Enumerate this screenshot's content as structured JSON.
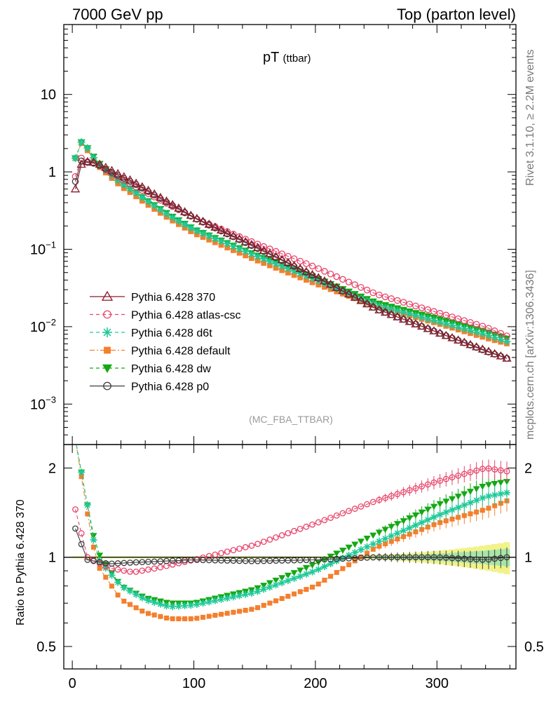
{
  "header": {
    "left": "7000 GeV pp",
    "right": "Top (parton level)"
  },
  "side_labels": {
    "rivet": "Rivet 3.1.10, ≥ 2.2M events",
    "mcplots": "mcplots.cern.ch [arXiv:1306.3436]"
  },
  "chart_data": [
    {
      "type": "scatter",
      "title": "pT",
      "title_sub": "(ttbar)",
      "watermark": "(MC_FBA_TTBAR)",
      "y_scale": "log",
      "ylim": [
        0.0003,
        80
      ],
      "xlim": [
        -7,
        365
      ],
      "y_tick_labels": [
        {
          "v": 10,
          "base": "10",
          "exp": ""
        },
        {
          "v": 1,
          "base": "1",
          "exp": ""
        },
        {
          "v": 0.1,
          "base": "10",
          "exp": "−1"
        },
        {
          "v": 0.01,
          "base": "10",
          "exp": "−2"
        },
        {
          "v": 0.001,
          "base": "10",
          "exp": "−3"
        }
      ],
      "legend_placement": "lower-left",
      "series": [
        {
          "name": "Pythia 6.428 370",
          "color": "#8b1a2b",
          "marker": "triangle-open",
          "line": "solid",
          "k": 0.7,
          "s": 0,
          "b": 0
        },
        {
          "name": "Pythia 6.428 atlas-csc",
          "color": "#e8446a",
          "marker": "circle-open",
          "line": "dashed",
          "k": 1.15,
          "s": 0.42,
          "b": 0.055
        },
        {
          "name": "Pythia 6.428 d6t",
          "color": "#20c997",
          "marker": "star",
          "line": "dashed",
          "k": 1.2,
          "s": 0.66,
          "b": 0.035
        },
        {
          "name": "Pythia 6.428 default",
          "color": "#f47f2c",
          "marker": "square",
          "line": "dashdot",
          "k": 1.3,
          "s": 0.57,
          "b": 0.032
        },
        {
          "name": "Pythia 6.428 dw",
          "color": "#14a814",
          "marker": "triangle-down",
          "line": "dashed",
          "k": 1.25,
          "s": 0.69,
          "b": 0.037
        },
        {
          "name": "Pythia 6.428 p0",
          "color": "#3d3d3d",
          "marker": "circle-open",
          "line": "solid",
          "k": 1.0,
          "s": 0.96,
          "b": 0.0
        }
      ],
      "ref_series_points": [
        [
          2.5,
          0.6
        ],
        [
          7.5,
          1.25
        ],
        [
          12.5,
          1.35
        ],
        [
          17.5,
          1.33
        ],
        [
          22.5,
          1.25
        ],
        [
          50,
          0.75
        ],
        [
          100,
          0.26
        ],
        [
          150,
          0.11
        ],
        [
          200,
          0.045
        ],
        [
          250,
          0.017
        ],
        [
          300,
          0.0085
        ],
        [
          357.5,
          0.0039
        ]
      ]
    },
    {
      "type": "scatter",
      "ylabel": "Ratio to Pythia 6.428 370",
      "y_scale": "log",
      "ylim": [
        0.42,
        2.4
      ],
      "xlim": [
        -7,
        365
      ],
      "y_ticks": [
        2,
        1,
        0.5
      ],
      "x_ticks": [
        0,
        100,
        200,
        300
      ],
      "ratio_points": {
        "Pythia 6.428 atlas-csc": [
          [
            2.5,
            1.45
          ],
          [
            12.5,
            1.0
          ],
          [
            30,
            0.92
          ],
          [
            50,
            0.89
          ],
          [
            70,
            0.92
          ],
          [
            100,
            0.98
          ],
          [
            150,
            1.1
          ],
          [
            200,
            1.3
          ],
          [
            250,
            1.55
          ],
          [
            300,
            1.8
          ],
          [
            340,
            2.0
          ],
          [
            357.5,
            1.95
          ]
        ],
        "Pythia 6.428 d6t": [
          [
            2.5,
            2.5
          ],
          [
            12.5,
            1.5
          ],
          [
            20,
            1.0
          ],
          [
            40,
            0.8
          ],
          [
            60,
            0.72
          ],
          [
            80,
            0.68
          ],
          [
            100,
            0.69
          ],
          [
            150,
            0.76
          ],
          [
            200,
            0.9
          ],
          [
            250,
            1.12
          ],
          [
            300,
            1.38
          ],
          [
            340,
            1.6
          ],
          [
            357.5,
            1.65
          ]
        ],
        "Pythia 6.428 default": [
          [
            2.5,
            2.5
          ],
          [
            12.5,
            1.4
          ],
          [
            20,
            0.95
          ],
          [
            40,
            0.72
          ],
          [
            60,
            0.65
          ],
          [
            80,
            0.62
          ],
          [
            100,
            0.62
          ],
          [
            150,
            0.67
          ],
          [
            200,
            0.8
          ],
          [
            250,
            1.08
          ],
          [
            300,
            1.3
          ],
          [
            340,
            1.45
          ],
          [
            357.5,
            1.55
          ]
        ],
        "Pythia 6.428 dw": [
          [
            2.5,
            2.5
          ],
          [
            12.5,
            1.5
          ],
          [
            20,
            1.05
          ],
          [
            40,
            0.8
          ],
          [
            60,
            0.73
          ],
          [
            80,
            0.7
          ],
          [
            100,
            0.7
          ],
          [
            150,
            0.78
          ],
          [
            200,
            0.95
          ],
          [
            250,
            1.2
          ],
          [
            300,
            1.5
          ],
          [
            340,
            1.75
          ],
          [
            357.5,
            1.8
          ]
        ],
        "Pythia 6.428 p0": [
          [
            2.5,
            1.25
          ],
          [
            12.5,
            0.98
          ],
          [
            30,
            0.95
          ],
          [
            50,
            0.96
          ],
          [
            100,
            0.98
          ],
          [
            150,
            0.97
          ],
          [
            200,
            0.98
          ],
          [
            250,
            1.0
          ],
          [
            300,
            1.0
          ],
          [
            340,
            0.98
          ],
          [
            357.5,
            1.0
          ]
        ]
      },
      "ref_band": {
        "color_inner": "#a8e6a8",
        "color_outer": "#f2f28a"
      }
    }
  ]
}
